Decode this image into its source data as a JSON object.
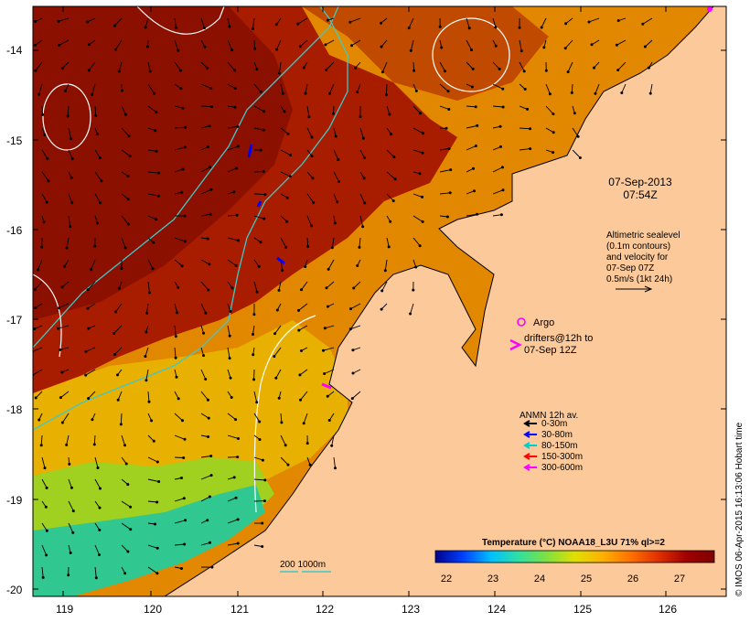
{
  "map": {
    "lat_labels": [
      "-14",
      "-15",
      "-16",
      "-17",
      "-18",
      "-19",
      "-20"
    ],
    "lon_labels": [
      "119",
      "120",
      "121",
      "122",
      "123",
      "124",
      "125",
      "126"
    ]
  },
  "annotations": {
    "date_line1": "07-Sep-2013",
    "date_line2": "07:54Z",
    "altimetric_lines": [
      "Altimetric sealevel",
      "(0.1m contours)",
      "and velocity for",
      "07-Sep 07Z",
      "0.5m/s (1kt 24h)"
    ],
    "argo_label": "Argo",
    "drifters_line1": "drifters@12h to",
    "drifters_line2": "07-Sep 12Z",
    "depth_contours_label": "200  1000m"
  },
  "anmn_legend": {
    "title": "ANMN 12h av.",
    "items": [
      {
        "label": "0-30m",
        "color": "#000000"
      },
      {
        "label": "30-80m",
        "color": "#0000ff"
      },
      {
        "label": "80-150m",
        "color": "#00cccc"
      },
      {
        "label": "150-300m",
        "color": "#ff0000"
      },
      {
        "label": "300-600m",
        "color": "#ff00ff"
      }
    ]
  },
  "colorbar": {
    "title": "Temperature (°C) NOAA18_L3U 71% ql>=2",
    "ticks": [
      "22",
      "23",
      "24",
      "25",
      "26",
      "27"
    ],
    "colors": [
      "#00008f",
      "#0040ff",
      "#00c0ff",
      "#30e0a0",
      "#80e040",
      "#e0e000",
      "#ffb000",
      "#ff7000",
      "#e03000",
      "#a00000",
      "#800000"
    ]
  },
  "credit": "© IMOS 06-Apr-2015 16:13:06 Hobart time",
  "colors": {
    "land": "#fcc99a",
    "warm_sea": "#a01a00",
    "mid_sea": "#e07a00",
    "cool_sea": "#e8c800",
    "cold_sea": "#30c890",
    "sealevel_contour": "#ffffff",
    "depth_contour": "#40c8c8"
  }
}
